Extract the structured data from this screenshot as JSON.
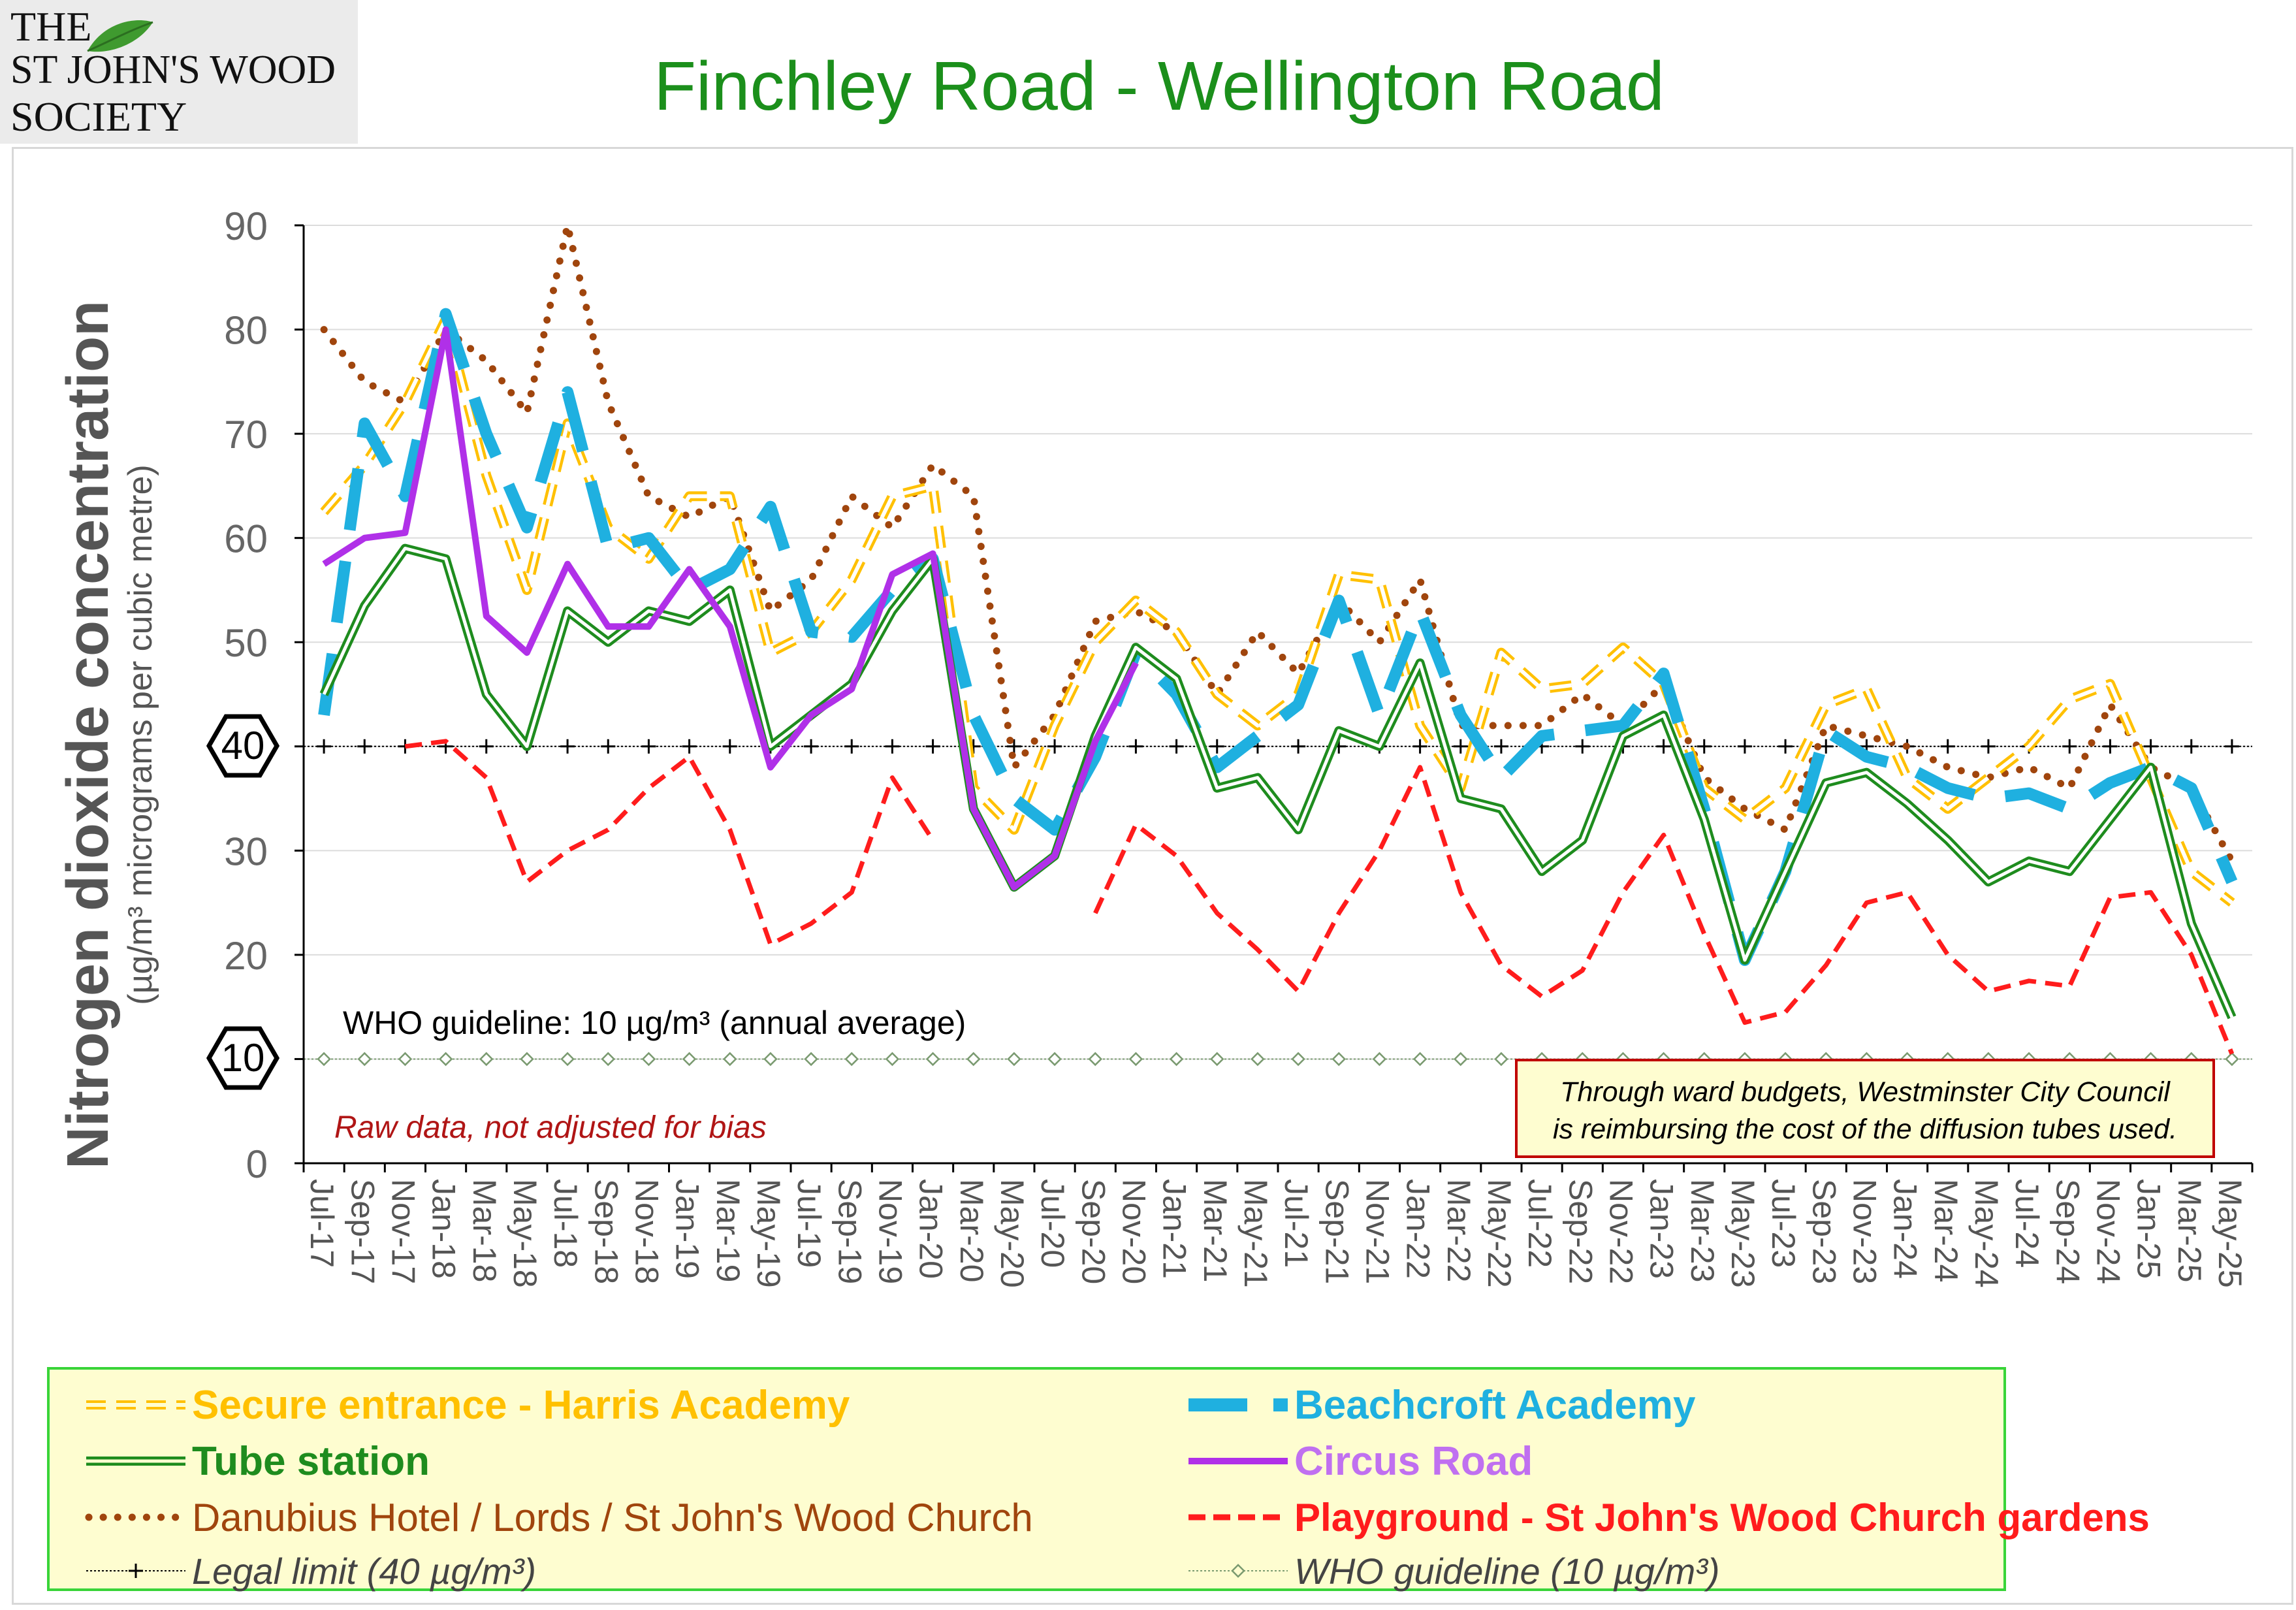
{
  "header": {
    "logo_line1": "THE",
    "logo_line2": "ST JOHN'S WOOD",
    "logo_line3": "SOCIETY",
    "title": "Finchley Road - Wellington Road"
  },
  "chart_data": {
    "type": "line",
    "title": "Finchley Road - Wellington Road",
    "ylabel": "Nitrogen dioxide concentration",
    "ylabel_sub": "(µg/m³ micrograms per cubic metre)",
    "ylim": [
      0,
      90
    ],
    "yticks": [
      "0",
      "10",
      "20",
      "30",
      "40",
      "50",
      "60",
      "70",
      "80",
      "90"
    ],
    "grid": true,
    "legend_position": "bottom",
    "categories": [
      "Jul-17",
      "Sep-17",
      "Nov-17",
      "Jan-18",
      "Mar-18",
      "May-18",
      "Jul-18",
      "Sep-18",
      "Nov-18",
      "Jan-19",
      "Mar-19",
      "May-19",
      "Jul-19",
      "Sep-19",
      "Nov-19",
      "Jan-20",
      "Mar-20",
      "May-20",
      "Jul-20",
      "Sep-20",
      "Nov-20",
      "Jan-21",
      "Mar-21",
      "May-21",
      "Jul-21",
      "Sep-21",
      "Nov-21",
      "Jan-22",
      "Mar-22",
      "May-22",
      "Jul-22",
      "Sep-22",
      "Nov-22",
      "Jan-23",
      "Mar-23",
      "May-23",
      "Jul-23",
      "Sep-23",
      "Nov-23",
      "Jan-24",
      "Mar-24",
      "May-24",
      "Jul-24",
      "Sep-24",
      "Nov-24",
      "Jan-25",
      "Mar-25",
      "May-25"
    ],
    "series": [
      {
        "name": "Secure entrance  - Harris Academy",
        "color": "#ffc000",
        "style": "double-dash",
        "values": [
          62.5,
          67,
          73,
          81,
          66,
          55,
          71,
          61,
          58,
          64,
          64,
          49,
          51,
          56,
          64,
          65,
          36,
          32,
          42,
          50,
          54,
          51,
          45,
          42,
          45,
          56.5,
          56,
          42,
          36,
          49,
          45.5,
          46,
          49.5,
          46,
          36,
          33,
          36,
          44,
          45.5,
          37,
          34,
          37,
          40,
          44.5,
          46,
          37,
          28,
          25
        ]
      },
      {
        "name": "Beachcroft Academy",
        "color": "#1fb0e0",
        "style": "long-dash",
        "values": [
          43,
          71,
          64,
          81.5,
          70,
          61,
          74,
          59,
          60,
          55,
          57,
          63,
          51,
          50.5,
          55,
          58,
          43,
          35,
          32,
          39,
          49,
          45,
          38,
          41,
          44,
          54,
          43,
          53,
          43,
          37,
          41,
          41.5,
          42,
          47,
          34,
          19.5,
          28,
          41.5,
          39,
          38,
          36,
          35,
          35.5,
          34,
          36.5,
          38,
          36,
          27
        ]
      },
      {
        "name": "Tube station",
        "color": "#1e8c1e",
        "style": "double-line",
        "values": [
          45,
          53.5,
          59,
          58,
          45,
          40,
          53,
          50,
          53,
          52,
          55,
          40,
          43,
          46,
          53,
          58,
          34,
          26.5,
          29.5,
          41,
          49.5,
          46.5,
          36,
          37,
          32,
          41.5,
          40,
          48,
          35,
          34,
          28,
          31,
          41,
          43,
          33,
          19.5,
          28,
          36.5,
          37.5,
          34.5,
          31,
          27,
          29,
          28,
          33,
          38,
          23,
          14
        ]
      },
      {
        "name": "Circus Road",
        "color": "#b030e8",
        "style": "solid",
        "values": [
          57.5,
          60,
          60.5,
          80,
          52.5,
          49,
          57.5,
          51.5,
          51.5,
          57,
          51.5,
          38,
          43,
          45.5,
          56.5,
          58.5,
          34,
          26.5,
          29.5,
          40.5,
          48,
          null,
          null,
          null,
          null,
          null,
          null,
          null,
          null,
          null,
          null,
          null,
          null,
          null,
          null,
          null,
          null,
          null,
          null,
          null,
          null,
          null,
          null,
          null,
          null,
          null,
          null,
          null
        ]
      },
      {
        "name": "Danubius Hotel / Lords / St John's Wood Church",
        "color": "#a0450d",
        "style": "dotted",
        "values": [
          80,
          75,
          73,
          80,
          77,
          72,
          90,
          73,
          64,
          62,
          64,
          53,
          56,
          64,
          61,
          67,
          64,
          38,
          43,
          52,
          53,
          51,
          45,
          51,
          47,
          54,
          50,
          56,
          42,
          42,
          42,
          45,
          42,
          46,
          37,
          34,
          32,
          42,
          41,
          40,
          38,
          37,
          38,
          36,
          44,
          38,
          36,
          29
        ]
      },
      {
        "name": "Playground - St John's Wood Church gardens",
        "color": "#ff1c1c",
        "style": "dashed",
        "values": [
          null,
          null,
          40,
          40.5,
          37,
          27,
          30,
          32,
          36,
          39,
          32,
          21,
          23,
          26,
          37,
          31,
          null,
          null,
          null,
          24,
          32.5,
          29.5,
          24,
          20.5,
          16.5,
          24,
          30,
          38,
          26,
          19,
          16,
          18.5,
          26,
          31.5,
          22,
          13.5,
          14.5,
          19,
          25,
          26,
          20,
          16.5,
          17.5,
          17,
          25.5,
          26,
          20,
          10.5
        ]
      }
    ],
    "reference_lines": [
      {
        "name": "Legal limit  (40 µg/m³)",
        "value": 40,
        "color": "#000000",
        "marker": "plus"
      },
      {
        "name": "WHO guideline  (10 µg/m³)",
        "value": 10,
        "color": "#7a9a70",
        "marker": "diamond"
      }
    ],
    "annotations": {
      "who_label": "WHO guideline: 10 µg/m³ (annual average)",
      "raw_note": "Raw data, not adjusted for bias",
      "box_line1": "Through ward budgets, Westminster City Council",
      "box_line2": "is reimbursing the cost of the diffusion tubes used.",
      "hex_40": "40",
      "hex_10": "10"
    }
  }
}
